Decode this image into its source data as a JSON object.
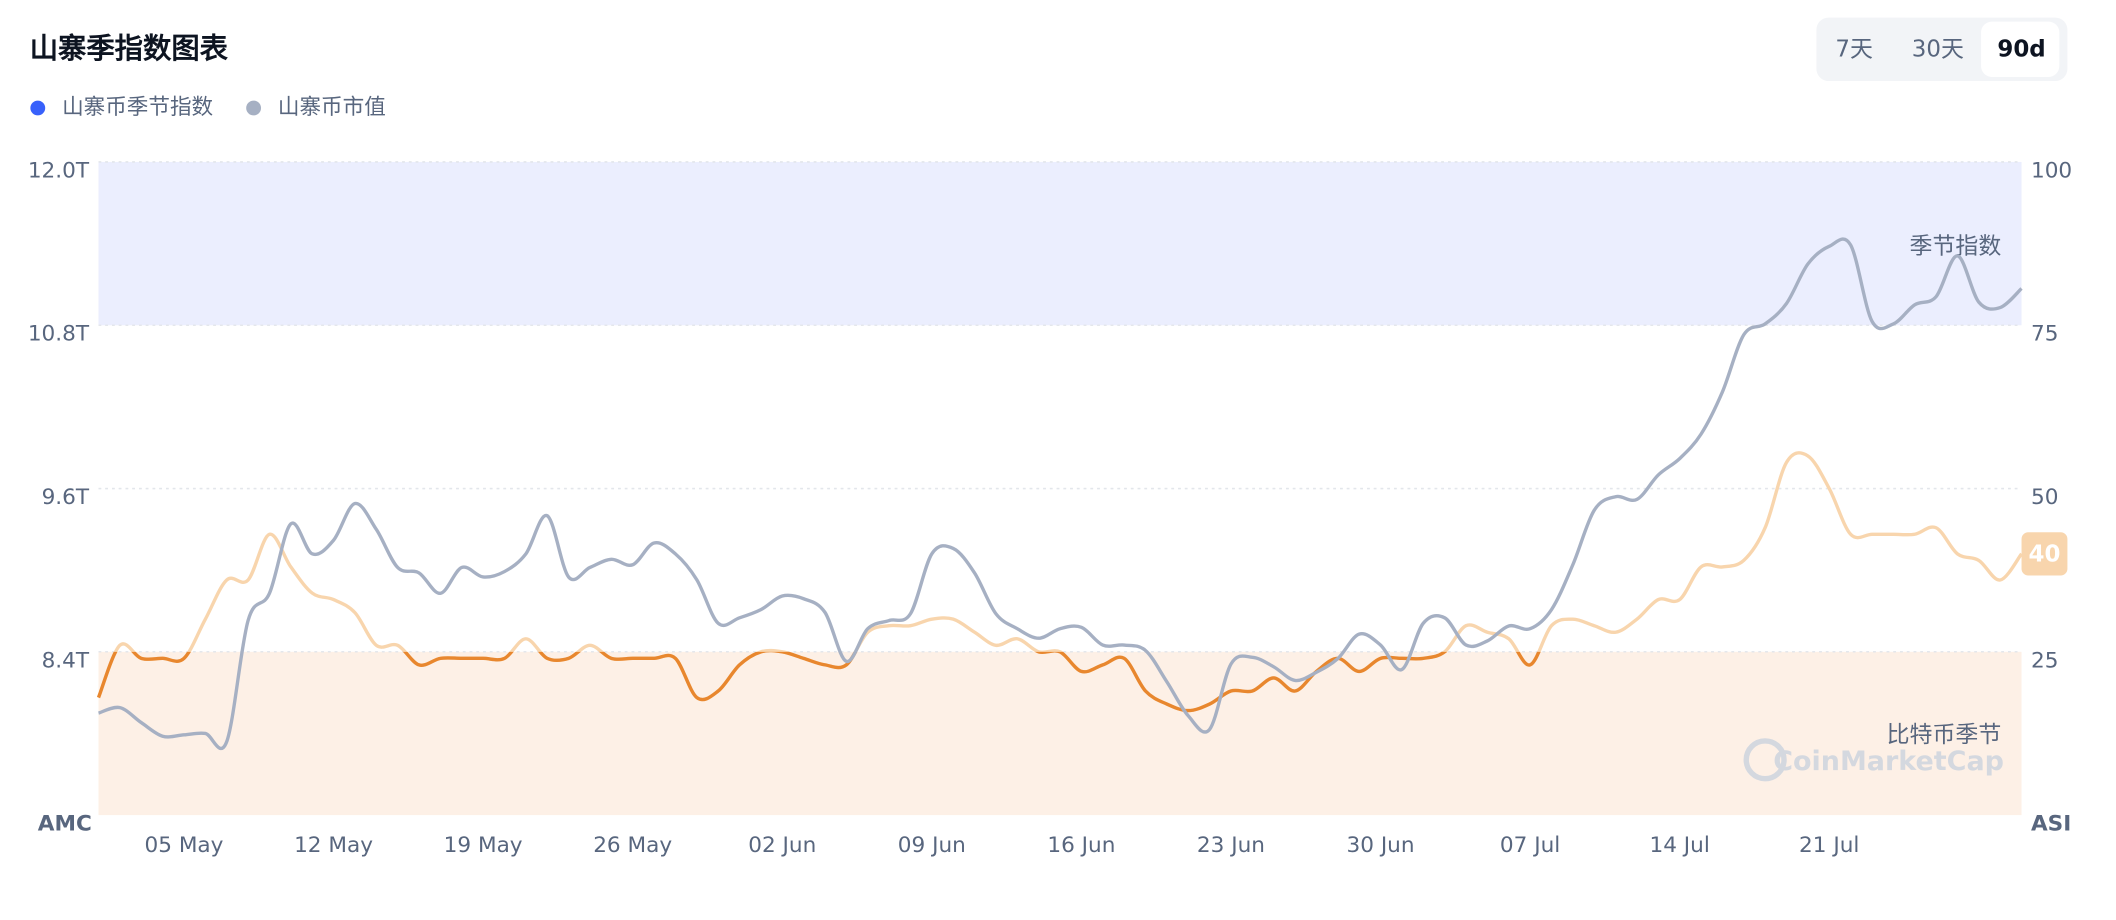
{
  "chart_data": {
    "type": "line",
    "title": "山寨季指数图表",
    "range_buttons": [
      "7天",
      "30天",
      "90d"
    ],
    "active_button": 2,
    "y_axis_label": "AMC",
    "y2_axis_label": "ASI",
    "watermark": "CoinMarketCap",
    "categories": [
      null,
      null,
      null,
      null,
      "05 May",
      null,
      null,
      null,
      null,
      null,
      null,
      "12 May",
      null,
      null,
      null,
      null,
      null,
      null,
      "19 May",
      null,
      null,
      null,
      null,
      null,
      null,
      "26 May",
      null,
      null,
      null,
      null,
      null,
      null,
      "02 Jun",
      null,
      null,
      null,
      null,
      null,
      null,
      "09 Jun",
      null,
      null,
      null,
      null,
      null,
      null,
      "16 Jun",
      null,
      null,
      null,
      null,
      null,
      null,
      "23 Jun",
      null,
      null,
      null,
      null,
      null,
      null,
      "30 Jun",
      null,
      null,
      null,
      null,
      null,
      null,
      "07 Jul",
      null,
      null,
      null,
      null,
      null,
      null,
      "14 Jul",
      null,
      null,
      null,
      null,
      null,
      null,
      "21 Jul",
      null,
      null,
      null,
      null,
      null,
      null,
      null,
      null,
      null
    ],
    "ylim": [
      7.2,
      12.0
    ],
    "yticks": [
      {
        "value": 8.4,
        "label": "8.4T"
      },
      {
        "value": 9.6,
        "label": "9.6T"
      },
      {
        "value": 10.8,
        "label": "10.8T"
      },
      {
        "value": 12.0,
        "label": "12.0T"
      }
    ],
    "y2lim": [
      0,
      100
    ],
    "y2ticks": [
      25,
      50,
      75,
      100
    ],
    "grid": true,
    "bands": [
      {
        "from": 75,
        "to": 100,
        "color": "#ebeefe",
        "label": "季节指数"
      },
      {
        "from": 0,
        "to": 25,
        "color": "#fdf0e6",
        "label": "比特币季节",
        "line_color": "#e8872e"
      }
    ],
    "series": [
      {
        "name": "山寨币季节指数",
        "color": "#3861fb",
        "line_color": "#f8d5ad",
        "axis": "y2",
        "values": [
          18,
          26,
          24,
          24,
          24,
          30,
          36,
          36,
          43,
          38,
          34,
          33,
          31,
          26,
          26,
          23,
          24,
          24,
          24,
          24,
          27,
          24,
          24,
          26,
          24,
          24,
          24,
          24,
          18,
          19,
          23,
          25,
          25,
          24,
          23,
          23,
          28,
          29,
          29,
          30,
          30,
          28,
          26,
          27,
          25,
          25,
          22,
          23,
          24,
          19,
          17,
          16,
          17,
          19,
          19,
          21,
          19,
          22,
          24,
          22,
          24,
          24,
          24,
          25,
          29,
          28,
          27,
          23,
          29,
          30,
          29,
          28,
          30,
          33,
          33,
          38,
          38,
          39,
          44,
          54,
          55,
          50,
          43,
          43,
          43,
          43,
          44,
          40,
          39,
          36,
          40
        ]
      },
      {
        "name": "山寨币市值",
        "color": "#a6b0c3",
        "line_color": "#a6b0c3",
        "values": [
          7.95,
          7.99,
          7.88,
          7.78,
          7.79,
          7.8,
          7.74,
          8.63,
          8.83,
          9.34,
          9.12,
          9.22,
          9.49,
          9.3,
          9.02,
          8.98,
          8.83,
          9.02,
          8.95,
          8.99,
          9.12,
          9.4,
          8.95,
          9.02,
          9.08,
          9.04,
          9.2,
          9.12,
          8.93,
          8.61,
          8.65,
          8.71,
          8.81,
          8.79,
          8.69,
          8.33,
          8.57,
          8.63,
          8.68,
          9.12,
          9.16,
          8.98,
          8.68,
          8.57,
          8.5,
          8.57,
          8.58,
          8.45,
          8.45,
          8.41,
          8.18,
          7.93,
          7.83,
          8.31,
          8.36,
          8.29,
          8.19,
          8.25,
          8.35,
          8.53,
          8.45,
          8.27,
          8.61,
          8.65,
          8.45,
          8.48,
          8.59,
          8.57,
          8.71,
          9.04,
          9.44,
          9.54,
          9.52,
          9.7,
          9.82,
          10.0,
          10.31,
          10.73,
          10.81,
          10.96,
          11.25,
          11.38,
          11.39,
          10.83,
          10.81,
          10.95,
          11.01,
          11.31,
          10.97,
          10.93,
          11.07
        ]
      }
    ]
  }
}
